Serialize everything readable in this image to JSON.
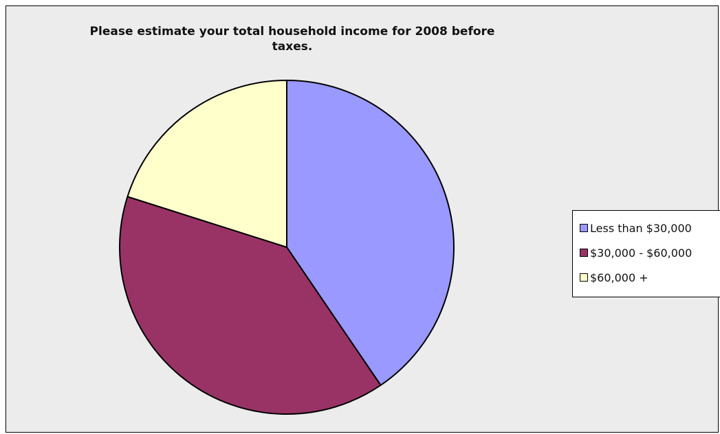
{
  "chart_data": {
    "type": "pie",
    "title": "Please estimate your total household income for 2008 before taxes.",
    "categories": [
      "Less than $30,000",
      "$30,000 - $60,000",
      "$60,000 +"
    ],
    "values": [
      40.5,
      39.4,
      20.1
    ],
    "colors": [
      "#9999ff",
      "#993366",
      "#ffffcc"
    ],
    "legend_position": "right"
  }
}
